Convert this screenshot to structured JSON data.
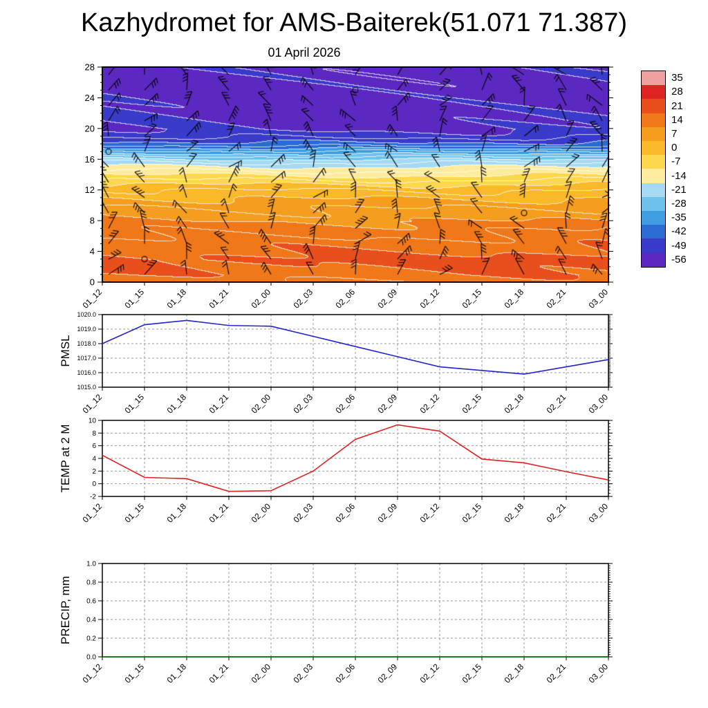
{
  "title": "Kazhydromet for AMS-Baiterek(51.071 71.387)",
  "subtitle": "01 April 2026",
  "time_labels": [
    "01_12",
    "01_15",
    "01_18",
    "01_21",
    "02_00",
    "02_03",
    "02_06",
    "02_09",
    "02_12",
    "02_15",
    "02_18",
    "02_21",
    "03_00"
  ],
  "chart_data": [
    {
      "type": "heatmap",
      "name": "temperature-height-time-cross-section",
      "title": "01 April 2026",
      "x_tick_labels": [
        "01_12",
        "01_15",
        "01_18",
        "01_21",
        "02_00",
        "02_03",
        "02_06",
        "02_09",
        "02_12",
        "02_15",
        "02_18",
        "02_21",
        "03_00"
      ],
      "ylim": [
        0,
        28
      ],
      "y_ticks": [
        0,
        4,
        8,
        12,
        16,
        20,
        24,
        28
      ],
      "wind_barbs": true,
      "contour_color": "#ffffff",
      "legend": {
        "levels": [
          35,
          28,
          21,
          14,
          7,
          0,
          -7,
          -14,
          -21,
          -28,
          -35,
          -42,
          -49,
          -56
        ],
        "colors": [
          "#f0a2a2",
          "#e02423",
          "#e94f1d",
          "#f07818",
          "#f59d1e",
          "#f9b929",
          "#fdd84e",
          "#feec9e",
          "#a6daf2",
          "#6ec2ec",
          "#3f9ee2",
          "#2b6bd4",
          "#3a3bca",
          "#5c28c2"
        ]
      },
      "profile": {
        "heights": [
          0,
          1,
          3,
          5,
          8,
          10,
          12,
          13,
          14,
          15,
          16,
          17,
          18,
          19,
          20,
          28
        ],
        "temps": [
          10,
          13,
          15,
          12,
          7,
          3,
          -3,
          -8,
          -14,
          -20,
          -27,
          -37,
          -47,
          -53,
          -56.5,
          -57.5
        ]
      }
    },
    {
      "type": "line",
      "name": "pmsl",
      "ylabel": "PMSL",
      "color": "#2222cc",
      "ylim": [
        1015,
        1020
      ],
      "y_ticks": [
        1015,
        1016,
        1017,
        1018,
        1019,
        1020
      ],
      "y_tick_labels": [
        "1015.0",
        "1016.0",
        "1017.0",
        "1018.0",
        "1019.0",
        "1020.0"
      ],
      "x": [
        "01_12",
        "01_15",
        "01_18",
        "01_21",
        "02_00",
        "02_03",
        "02_06",
        "02_09",
        "02_12",
        "02_15",
        "02_18",
        "02_21",
        "03_00"
      ],
      "values": [
        1018.0,
        1019.3,
        1019.6,
        1019.25,
        1019.2,
        1018.5,
        1017.8,
        1017.1,
        1016.4,
        1016.15,
        1015.9,
        1016.4,
        1016.9
      ]
    },
    {
      "type": "line",
      "name": "temp-at-2m",
      "ylabel": "TEMP at 2 M",
      "color": "#dd2020",
      "ylim": [
        -2,
        10
      ],
      "y_ticks": [
        -2,
        0,
        2,
        4,
        6,
        8,
        10
      ],
      "y_tick_labels": [
        "-2",
        "0",
        "2",
        "4",
        "6",
        "8",
        "10"
      ],
      "x": [
        "01_12",
        "01_15",
        "01_18",
        "01_21",
        "02_00",
        "02_03",
        "02_06",
        "02_09",
        "02_12",
        "02_15",
        "02_18",
        "02_21",
        "03_00"
      ],
      "values": [
        4.5,
        1.0,
        0.8,
        -1.2,
        -1.1,
        2.0,
        7.0,
        9.3,
        8.3,
        3.9,
        3.3,
        1.9,
        0.6
      ]
    },
    {
      "type": "line",
      "name": "precip",
      "ylabel": "PRECIP, mm",
      "color": "#007700",
      "ylim": [
        0,
        1
      ],
      "y_ticks": [
        0,
        0.2,
        0.4,
        0.6,
        0.8,
        1
      ],
      "y_tick_labels": [
        "0.0",
        "0.2",
        "0.4",
        "0.6",
        "0.8",
        "1.0"
      ],
      "x": [
        "01_12",
        "01_15",
        "01_18",
        "01_21",
        "02_00",
        "02_03",
        "02_06",
        "02_09",
        "02_12",
        "02_15",
        "02_18",
        "02_21",
        "03_00"
      ],
      "values": [
        0,
        0,
        0,
        0,
        0,
        0,
        0,
        0,
        0,
        0,
        0,
        0,
        0
      ]
    }
  ]
}
